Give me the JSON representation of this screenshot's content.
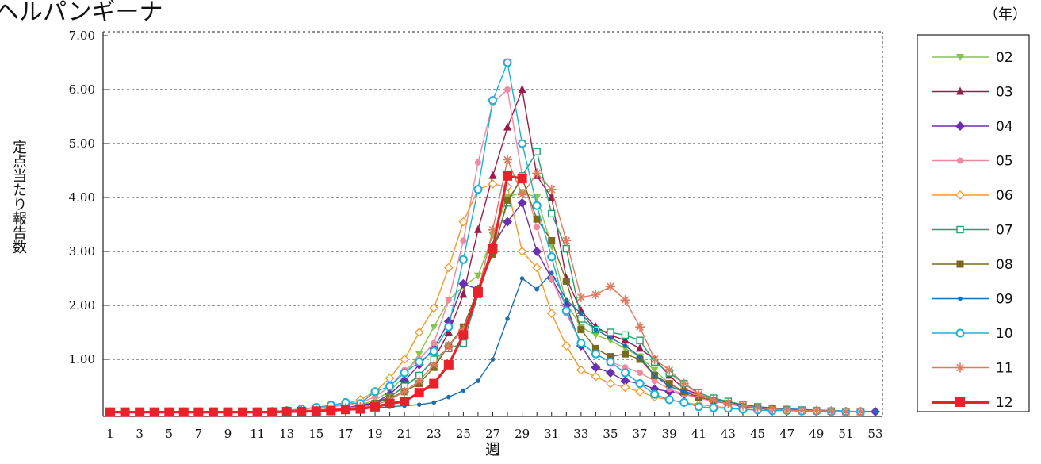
{
  "chart_data": {
    "type": "line",
    "title": "ヘルパンギーナ",
    "xlabel": "週",
    "ylabel": "定点当たり報告数",
    "legend_title": "（年）",
    "ylim": [
      0,
      7
    ],
    "xlim": [
      1,
      53
    ],
    "y_ticks": [
      "7.00",
      "6.00",
      "5.00",
      "4.00",
      "3.00",
      "2.00",
      "1.00"
    ],
    "x_ticks": [
      "1",
      "3",
      "5",
      "7",
      "9",
      "11",
      "13",
      "15",
      "17",
      "19",
      "21",
      "23",
      "25",
      "27",
      "29",
      "31",
      "33",
      "35",
      "37",
      "39",
      "41",
      "43",
      "45",
      "47",
      "49",
      "51",
      "53"
    ],
    "grid": "dashed-horizontal",
    "legend_position": "right",
    "series": [
      {
        "name": "02",
        "color": "#8bc34a",
        "marker": "triangle-down",
        "values": [
          0.02,
          0.02,
          0.02,
          0.02,
          0.02,
          0.02,
          0.02,
          0.02,
          0.02,
          0.02,
          0.02,
          0.03,
          0.04,
          0.05,
          0.06,
          0.08,
          0.1,
          0.15,
          0.25,
          0.4,
          0.7,
          1.1,
          1.6,
          2.1,
          2.35,
          2.55,
          3.3,
          4.0,
          4.1,
          4.0,
          3.1,
          2.05,
          1.6,
          1.45,
          1.35,
          1.2,
          1.05,
          0.8,
          0.55,
          0.4,
          0.3,
          0.25,
          0.18,
          0.14,
          0.1,
          0.08,
          0.06,
          0.05,
          0.05,
          0.04,
          0.03,
          0.03,
          null
        ]
      },
      {
        "name": "03",
        "color": "#9b1b4a",
        "marker": "triangle",
        "values": [
          0.02,
          0.02,
          0.02,
          0.02,
          0.02,
          0.02,
          0.02,
          0.02,
          0.02,
          0.02,
          0.02,
          0.03,
          0.04,
          0.05,
          0.06,
          0.08,
          0.1,
          0.12,
          0.2,
          0.3,
          0.5,
          0.7,
          1.0,
          1.5,
          2.2,
          3.4,
          4.4,
          5.3,
          6.0,
          4.4,
          4.0,
          2.5,
          1.9,
          1.6,
          1.45,
          1.35,
          1.2,
          1.0,
          0.7,
          0.45,
          0.35,
          0.25,
          0.2,
          0.15,
          0.1,
          0.08,
          0.06,
          0.05,
          0.05,
          0.04,
          0.03,
          0.03,
          null
        ]
      },
      {
        "name": "04",
        "color": "#6a2fb0",
        "marker": "diamond",
        "values": [
          0.02,
          0.02,
          0.02,
          0.02,
          0.02,
          0.02,
          0.02,
          0.02,
          0.02,
          0.02,
          0.02,
          0.03,
          0.04,
          0.05,
          0.06,
          0.08,
          0.1,
          0.15,
          0.2,
          0.35,
          0.6,
          0.9,
          1.2,
          1.7,
          2.4,
          2.3,
          3.1,
          3.55,
          3.9,
          3.0,
          2.5,
          2.0,
          1.25,
          0.85,
          0.75,
          0.6,
          0.55,
          0.45,
          0.4,
          0.35,
          0.3,
          0.22,
          0.18,
          0.12,
          0.09,
          0.07,
          0.06,
          0.05,
          0.05,
          0.04,
          0.03,
          0.03,
          0.03
        ]
      },
      {
        "name": "05",
        "color": "#ef8aa0",
        "marker": "circle",
        "values": [
          0.02,
          0.02,
          0.02,
          0.02,
          0.02,
          0.02,
          0.02,
          0.02,
          0.02,
          0.02,
          0.02,
          0.03,
          0.05,
          0.07,
          0.1,
          0.12,
          0.15,
          0.2,
          0.3,
          0.5,
          0.8,
          1.0,
          1.3,
          2.1,
          3.2,
          4.65,
          5.75,
          6.0,
          4.4,
          3.45,
          2.5,
          1.85,
          1.3,
          1.1,
          0.95,
          0.85,
          0.75,
          0.6,
          0.45,
          0.35,
          0.28,
          0.22,
          0.18,
          0.13,
          0.1,
          0.08,
          0.06,
          0.05,
          0.05,
          0.04,
          0.03,
          0.03,
          null
        ]
      },
      {
        "name": "06",
        "color": "#f39a2b",
        "marker": "diamond-open",
        "values": [
          0.02,
          0.02,
          0.02,
          0.02,
          0.02,
          0.02,
          0.02,
          0.02,
          0.02,
          0.02,
          0.02,
          0.03,
          0.05,
          0.08,
          0.1,
          0.13,
          0.18,
          0.25,
          0.4,
          0.65,
          1.0,
          1.5,
          1.95,
          2.7,
          3.55,
          4.15,
          4.25,
          4.2,
          3.0,
          2.7,
          1.85,
          1.25,
          0.8,
          0.68,
          0.55,
          0.48,
          0.4,
          0.3,
          0.25,
          0.2,
          0.16,
          0.13,
          0.1,
          0.08,
          0.06,
          0.05,
          0.05,
          0.04,
          0.03,
          0.03,
          0.03,
          0.02,
          null
        ]
      },
      {
        "name": "07",
        "color": "#1fa36b",
        "marker": "square-open",
        "values": [
          0.02,
          0.02,
          0.02,
          0.02,
          0.02,
          0.02,
          0.02,
          0.02,
          0.02,
          0.02,
          0.02,
          0.03,
          0.04,
          0.05,
          0.06,
          0.08,
          0.1,
          0.12,
          0.18,
          0.3,
          0.5,
          0.7,
          1.0,
          1.2,
          1.3,
          2.2,
          3.0,
          3.9,
          4.4,
          4.85,
          3.7,
          3.05,
          1.75,
          1.55,
          1.5,
          1.45,
          1.35,
          0.95,
          0.75,
          0.55,
          0.38,
          0.28,
          0.22,
          0.16,
          0.12,
          0.09,
          0.07,
          0.06,
          0.05,
          0.04,
          0.03,
          0.03,
          null
        ]
      },
      {
        "name": "08",
        "color": "#7a6a1e",
        "marker": "square",
        "values": [
          0.02,
          0.02,
          0.02,
          0.02,
          0.02,
          0.02,
          0.02,
          0.02,
          0.02,
          0.02,
          0.02,
          0.03,
          0.04,
          0.05,
          0.06,
          0.08,
          0.1,
          0.12,
          0.18,
          0.28,
          0.4,
          0.55,
          0.85,
          1.25,
          1.6,
          2.3,
          2.95,
          3.95,
          4.35,
          3.6,
          3.2,
          2.45,
          1.55,
          1.2,
          1.05,
          1.1,
          1.0,
          0.7,
          0.55,
          0.4,
          0.3,
          0.24,
          0.18,
          0.13,
          0.1,
          0.08,
          0.06,
          0.05,
          0.05,
          0.04,
          0.03,
          0.03,
          null
        ]
      },
      {
        "name": "09",
        "color": "#1f6fae",
        "marker": "dot",
        "values": [
          0.02,
          0.02,
          0.02,
          0.02,
          0.02,
          0.02,
          0.02,
          0.02,
          0.02,
          0.02,
          0.02,
          0.03,
          0.03,
          0.04,
          0.05,
          0.06,
          0.07,
          0.08,
          0.1,
          0.12,
          0.14,
          0.16,
          0.2,
          0.3,
          0.42,
          0.6,
          1.0,
          1.75,
          2.5,
          2.3,
          2.6,
          2.1,
          1.85,
          1.55,
          1.4,
          1.25,
          1.05,
          0.7,
          0.5,
          0.4,
          0.35,
          0.26,
          0.2,
          0.15,
          0.12,
          0.1,
          0.08,
          0.07,
          0.06,
          0.05,
          0.04,
          0.03,
          0.03
        ]
      },
      {
        "name": "10",
        "color": "#1ab1d9",
        "marker": "circle-open",
        "values": [
          0.02,
          0.02,
          0.02,
          0.02,
          0.02,
          0.02,
          0.02,
          0.02,
          0.02,
          0.02,
          0.02,
          0.03,
          0.05,
          0.08,
          0.11,
          0.15,
          0.2,
          0.18,
          0.4,
          0.5,
          0.75,
          0.95,
          1.15,
          1.6,
          2.85,
          4.15,
          5.8,
          6.5,
          5.0,
          3.85,
          2.9,
          1.9,
          1.3,
          1.1,
          0.95,
          0.75,
          0.55,
          0.35,
          0.25,
          0.2,
          0.12,
          0.1,
          0.09,
          0.07,
          0.06,
          0.05,
          0.05,
          0.04,
          0.04,
          0.03,
          0.03,
          0.03,
          null
        ]
      },
      {
        "name": "11",
        "color": "#e07a5f",
        "marker": "star",
        "values": [
          0.02,
          0.02,
          0.02,
          0.02,
          0.02,
          0.02,
          0.02,
          0.02,
          0.02,
          0.02,
          0.02,
          0.03,
          0.04,
          0.05,
          0.06,
          0.08,
          0.1,
          0.12,
          0.15,
          0.25,
          0.4,
          0.6,
          0.9,
          1.25,
          1.55,
          2.25,
          3.4,
          4.7,
          4.05,
          4.45,
          4.15,
          3.2,
          2.15,
          2.2,
          2.35,
          2.1,
          1.6,
          1.0,
          0.8,
          0.55,
          0.35,
          0.25,
          0.18,
          0.14,
          0.1,
          0.08,
          0.06,
          0.05,
          0.05,
          0.04,
          0.03,
          0.03,
          null
        ]
      },
      {
        "name": "12",
        "color": "#e8212b",
        "marker": "square-bold",
        "values": [
          0.02,
          0.02,
          0.02,
          0.02,
          0.02,
          0.02,
          0.02,
          0.02,
          0.02,
          0.02,
          0.02,
          0.02,
          0.03,
          0.03,
          0.04,
          0.05,
          0.07,
          0.08,
          0.12,
          0.18,
          0.22,
          0.38,
          0.55,
          0.9,
          1.45,
          2.25,
          3.05,
          4.4,
          4.35,
          null,
          null,
          null,
          null,
          null,
          null,
          null,
          null,
          null,
          null,
          null,
          null,
          null,
          null,
          null,
          null,
          null,
          null,
          null,
          null,
          null,
          null,
          null,
          null
        ]
      }
    ]
  }
}
